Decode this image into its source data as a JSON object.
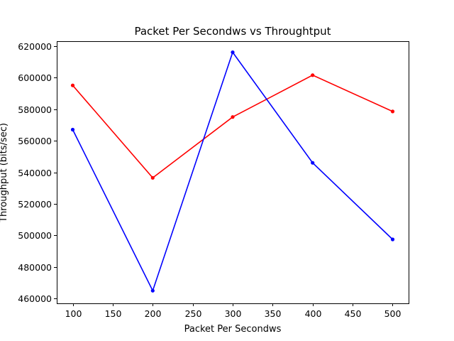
{
  "chart_data": {
    "type": "line",
    "title": "Packet Per Secondws vs Throughtput",
    "xlabel": "Packet Per Secondws",
    "ylabel": "Throughput (bits/sec)",
    "x": [
      100,
      200,
      300,
      400,
      500
    ],
    "xlim": [
      80,
      520
    ],
    "ylim": [
      457000,
      623000
    ],
    "xticks": [
      100,
      150,
      200,
      250,
      300,
      350,
      400,
      450,
      500
    ],
    "yticks": [
      460000,
      480000,
      500000,
      520000,
      540000,
      560000,
      580000,
      600000,
      620000
    ],
    "grid": false,
    "legend": "none",
    "series": [
      {
        "color": "#ff0000",
        "marker": "circle",
        "values": [
          595000,
          536500,
          575000,
          601500,
          578500
        ]
      },
      {
        "color": "#0000ff",
        "marker": "circle",
        "values": [
          567000,
          465000,
          616000,
          546000,
          497500
        ]
      }
    ]
  }
}
